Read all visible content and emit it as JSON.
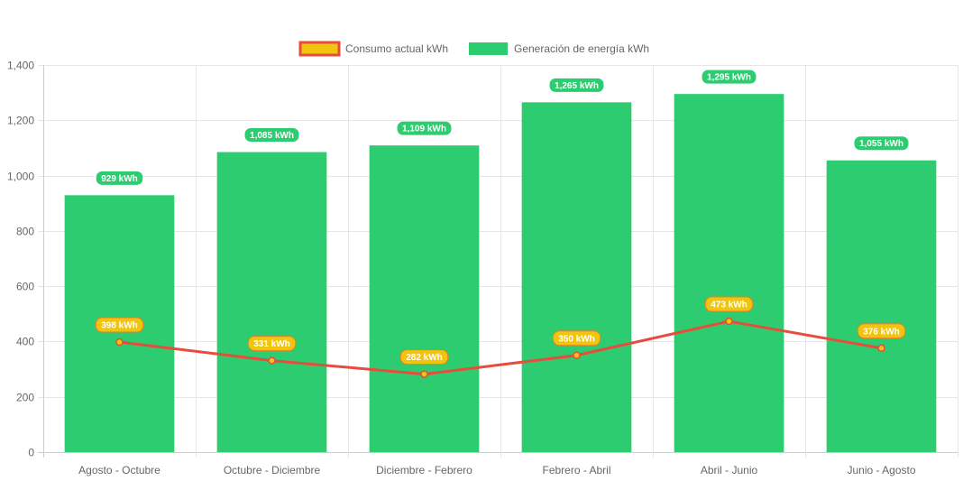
{
  "chart_data": {
    "type": "bar",
    "title": "",
    "xlabel": "",
    "ylabel": "",
    "ylim": [
      0,
      1400
    ],
    "y_ticks": [
      0,
      200,
      400,
      600,
      800,
      1000,
      1200,
      1400
    ],
    "y_tick_labels": [
      "0",
      "200",
      "400",
      "600",
      "800",
      "1,000",
      "1,200",
      "1,400"
    ],
    "grid": true,
    "legend_position": "top-center",
    "categories": [
      "Agosto - Octubre",
      "Octubre - Diciembre",
      "Diciembre - Febrero",
      "Febrero - Abril",
      "Abril - Junio",
      "Junio - Agosto"
    ],
    "series": [
      {
        "name": "Consumo actual kWh",
        "type": "line",
        "values": [
          398,
          331,
          282,
          350,
          473,
          376
        ],
        "labels": [
          "398 kWh",
          "331 kWh",
          "282 kWh",
          "350 kWh",
          "473 kWh",
          "376 kWh"
        ],
        "color": "#e74c3c",
        "fill_color": "#f1c40f"
      },
      {
        "name": "Generación de energía kWh",
        "type": "bar",
        "values": [
          929,
          1085,
          1109,
          1265,
          1295,
          1055
        ],
        "labels": [
          "929 kWh",
          "1,085 kWh",
          "1,109 kWh",
          "1,265 kWh",
          "1,295 kWh",
          "1,055 kWh"
        ],
        "color": "#2ecc71"
      }
    ]
  }
}
